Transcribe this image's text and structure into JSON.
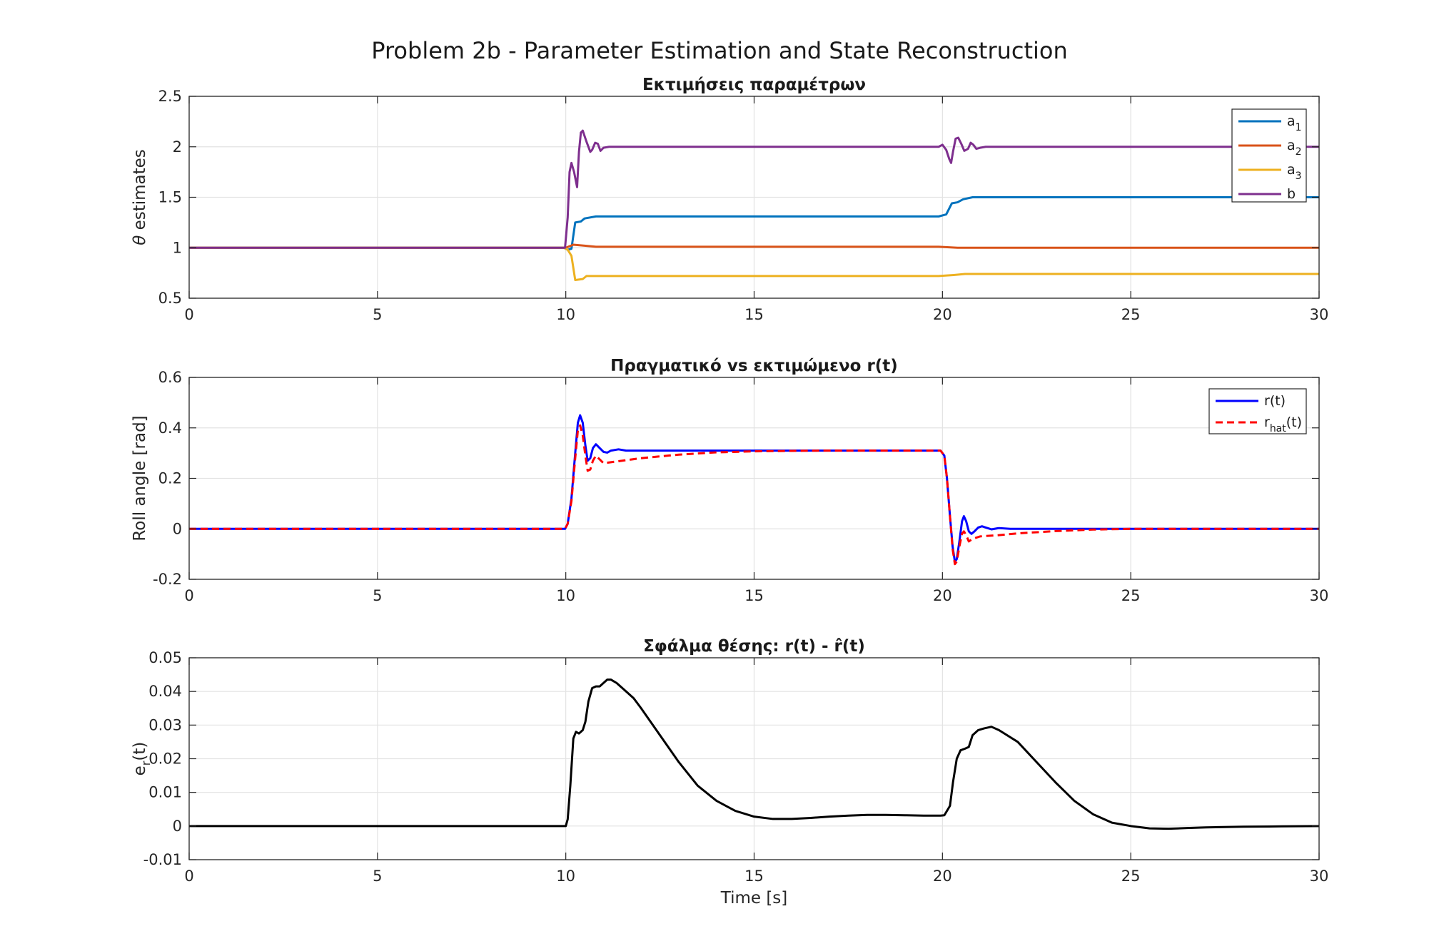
{
  "figure": {
    "suptitle": "Problem 2b - Parameter Estimation and State Reconstruction"
  },
  "chart_data": [
    {
      "type": "line",
      "title": "Εκτιμήσεις παραμέτρων",
      "xlabel": "",
      "ylabel_symbol": "θ",
      "ylabel": "estimates",
      "xlim": [
        0,
        30
      ],
      "ylim": [
        0.5,
        2.5
      ],
      "xticks": [
        "0",
        "5",
        "10",
        "15",
        "20",
        "25",
        "30"
      ],
      "yticks": [
        "0.5",
        "1",
        "1.5",
        "2",
        "2.5"
      ],
      "grid": true,
      "legend_position": "top-right",
      "series": [
        {
          "name": "a",
          "subscript": "1",
          "color": "#0072BD",
          "dash": "solid",
          "points": [
            [
              0,
              1
            ],
            [
              9.95,
              1
            ],
            [
              10.05,
              0.98
            ],
            [
              10.15,
              0.99
            ],
            [
              10.25,
              1.25
            ],
            [
              10.4,
              1.26
            ],
            [
              10.5,
              1.29
            ],
            [
              10.8,
              1.31
            ],
            [
              12,
              1.31
            ],
            [
              19.9,
              1.31
            ],
            [
              20.1,
              1.33
            ],
            [
              20.25,
              1.44
            ],
            [
              20.4,
              1.45
            ],
            [
              20.55,
              1.48
            ],
            [
              20.8,
              1.5
            ],
            [
              30,
              1.5
            ]
          ]
        },
        {
          "name": "a",
          "subscript": "2",
          "color": "#D95319",
          "dash": "solid",
          "points": [
            [
              0,
              1
            ],
            [
              10,
              1
            ],
            [
              10.2,
              1.03
            ],
            [
              10.5,
              1.02
            ],
            [
              10.8,
              1.01
            ],
            [
              19.9,
              1.01
            ],
            [
              20.4,
              1.0
            ],
            [
              30,
              1.0
            ]
          ]
        },
        {
          "name": "a",
          "subscript": "3",
          "color": "#EDB120",
          "dash": "solid",
          "points": [
            [
              0,
              1
            ],
            [
              9.95,
              1
            ],
            [
              10.05,
              0.98
            ],
            [
              10.15,
              0.92
            ],
            [
              10.25,
              0.68
            ],
            [
              10.45,
              0.69
            ],
            [
              10.55,
              0.72
            ],
            [
              10.8,
              0.72
            ],
            [
              19.9,
              0.72
            ],
            [
              20.3,
              0.73
            ],
            [
              20.6,
              0.74
            ],
            [
              30,
              0.74
            ]
          ]
        },
        {
          "name": "b",
          "subscript": "",
          "color": "#7E2F8E",
          "dash": "solid",
          "points": [
            [
              0,
              1
            ],
            [
              9.98,
              1
            ],
            [
              10.05,
              1.3
            ],
            [
              10.1,
              1.75
            ],
            [
              10.15,
              1.84
            ],
            [
              10.22,
              1.75
            ],
            [
              10.3,
              1.6
            ],
            [
              10.35,
              1.95
            ],
            [
              10.4,
              2.14
            ],
            [
              10.45,
              2.16
            ],
            [
              10.55,
              2.05
            ],
            [
              10.65,
              1.95
            ],
            [
              10.7,
              1.97
            ],
            [
              10.78,
              2.04
            ],
            [
              10.85,
              2.03
            ],
            [
              10.92,
              1.96
            ],
            [
              11.0,
              1.99
            ],
            [
              11.15,
              2.0
            ],
            [
              12,
              2.0
            ],
            [
              19.9,
              2.0
            ],
            [
              20.0,
              2.02
            ],
            [
              20.1,
              1.97
            ],
            [
              20.18,
              1.88
            ],
            [
              20.23,
              1.84
            ],
            [
              20.28,
              1.95
            ],
            [
              20.35,
              2.08
            ],
            [
              20.42,
              2.09
            ],
            [
              20.5,
              2.03
            ],
            [
              20.58,
              1.96
            ],
            [
              20.68,
              1.98
            ],
            [
              20.75,
              2.04
            ],
            [
              20.82,
              2.02
            ],
            [
              20.9,
              1.98
            ],
            [
              21.0,
              1.99
            ],
            [
              21.15,
              2.0
            ],
            [
              30,
              2.0
            ]
          ]
        }
      ]
    },
    {
      "type": "line",
      "title": "Πραγματικό vs εκτιμώμενο r(t)",
      "xlabel": "",
      "ylabel": "Roll angle [rad]",
      "xlim": [
        0,
        30
      ],
      "ylim": [
        -0.2,
        0.6
      ],
      "xticks": [
        "0",
        "5",
        "10",
        "15",
        "20",
        "25",
        "30"
      ],
      "yticks": [
        "-0.2",
        "0",
        "0.2",
        "0.4",
        "0.6"
      ],
      "grid": true,
      "legend_position": "top-right",
      "series": [
        {
          "name": "r(t)",
          "label_main": "r",
          "label_sub": "",
          "label_tail": "(t)",
          "color": "#0000FF",
          "dash": "solid",
          "points": [
            [
              0,
              0
            ],
            [
              9.98,
              0
            ],
            [
              10.05,
              0.02
            ],
            [
              10.15,
              0.12
            ],
            [
              10.25,
              0.3
            ],
            [
              10.32,
              0.42
            ],
            [
              10.38,
              0.45
            ],
            [
              10.45,
              0.42
            ],
            [
              10.52,
              0.33
            ],
            [
              10.58,
              0.27
            ],
            [
              10.65,
              0.28
            ],
            [
              10.72,
              0.32
            ],
            [
              10.8,
              0.335
            ],
            [
              10.9,
              0.32
            ],
            [
              11.0,
              0.305
            ],
            [
              11.1,
              0.302
            ],
            [
              11.2,
              0.31
            ],
            [
              11.4,
              0.315
            ],
            [
              11.6,
              0.31
            ],
            [
              12,
              0.31
            ],
            [
              19.95,
              0.31
            ],
            [
              20.05,
              0.29
            ],
            [
              20.12,
              0.2
            ],
            [
              20.2,
              0.05
            ],
            [
              20.27,
              -0.07
            ],
            [
              20.33,
              -0.13
            ],
            [
              20.38,
              -0.12
            ],
            [
              20.45,
              -0.05
            ],
            [
              20.52,
              0.03
            ],
            [
              20.57,
              0.05
            ],
            [
              20.63,
              0.03
            ],
            [
              20.7,
              -0.01
            ],
            [
              20.77,
              -0.02
            ],
            [
              20.85,
              -0.01
            ],
            [
              20.95,
              0.005
            ],
            [
              21.05,
              0.01
            ],
            [
              21.15,
              0.005
            ],
            [
              21.3,
              -0.002
            ],
            [
              21.5,
              0.003
            ],
            [
              21.8,
              0
            ],
            [
              30,
              0
            ]
          ]
        },
        {
          "name": "r_hat(t)",
          "label_main": "r",
          "label_sub": "hat",
          "label_tail": "(t)",
          "color": "#FF0000",
          "dash": "dashed",
          "points": [
            [
              0,
              0
            ],
            [
              9.98,
              0
            ],
            [
              10.05,
              0.02
            ],
            [
              10.15,
              0.11
            ],
            [
              10.25,
              0.28
            ],
            [
              10.32,
              0.39
            ],
            [
              10.38,
              0.41
            ],
            [
              10.45,
              0.37
            ],
            [
              10.52,
              0.29
            ],
            [
              10.58,
              0.23
            ],
            [
              10.65,
              0.235
            ],
            [
              10.72,
              0.27
            ],
            [
              10.8,
              0.29
            ],
            [
              10.9,
              0.275
            ],
            [
              11.0,
              0.26
            ],
            [
              11.5,
              0.27
            ],
            [
              12,
              0.28
            ],
            [
              13,
              0.294
            ],
            [
              14,
              0.303
            ],
            [
              15,
              0.307
            ],
            [
              16,
              0.309
            ],
            [
              17,
              0.31
            ],
            [
              19.95,
              0.31
            ],
            [
              20.05,
              0.29
            ],
            [
              20.12,
              0.2
            ],
            [
              20.2,
              0.05
            ],
            [
              20.27,
              -0.08
            ],
            [
              20.33,
              -0.14
            ],
            [
              20.38,
              -0.13
            ],
            [
              20.45,
              -0.07
            ],
            [
              20.52,
              -0.02
            ],
            [
              20.57,
              -0.01
            ],
            [
              20.63,
              -0.025
            ],
            [
              20.7,
              -0.05
            ],
            [
              20.8,
              -0.04
            ],
            [
              21.0,
              -0.03
            ],
            [
              21.5,
              -0.025
            ],
            [
              22,
              -0.018
            ],
            [
              23,
              -0.009
            ],
            [
              24,
              -0.003
            ],
            [
              25,
              0
            ],
            [
              30,
              0
            ]
          ]
        }
      ]
    },
    {
      "type": "line",
      "title": "Σφάλμα θέσης: r(t) - r̂(t)",
      "xlabel": "Time [s]",
      "ylabel_main": "e",
      "ylabel_sub": "r",
      "ylabel_tail": "(t)",
      "xlim": [
        0,
        30
      ],
      "ylim": [
        -0.01,
        0.05
      ],
      "xticks": [
        "0",
        "5",
        "10",
        "15",
        "20",
        "25",
        "30"
      ],
      "yticks": [
        "-0.01",
        "0",
        "0.01",
        "0.02",
        "0.03",
        "0.04",
        "0.05"
      ],
      "grid": true,
      "legend_position": "none",
      "series": [
        {
          "name": "e_r(t)",
          "color": "#000000",
          "dash": "solid",
          "points": [
            [
              0,
              0
            ],
            [
              10,
              0
            ],
            [
              10.05,
              0.002
            ],
            [
              10.12,
              0.012
            ],
            [
              10.2,
              0.026
            ],
            [
              10.27,
              0.028
            ],
            [
              10.35,
              0.0275
            ],
            [
              10.45,
              0.0285
            ],
            [
              10.52,
              0.031
            ],
            [
              10.6,
              0.037
            ],
            [
              10.7,
              0.041
            ],
            [
              10.8,
              0.0415
            ],
            [
              10.9,
              0.0415
            ],
            [
              11.0,
              0.0425
            ],
            [
              11.1,
              0.0435
            ],
            [
              11.2,
              0.0435
            ],
            [
              11.35,
              0.0425
            ],
            [
              11.6,
              0.04
            ],
            [
              11.8,
              0.038
            ],
            [
              12,
              0.035
            ],
            [
              12.5,
              0.027
            ],
            [
              13,
              0.019
            ],
            [
              13.5,
              0.012
            ],
            [
              14,
              0.0075
            ],
            [
              14.5,
              0.0045
            ],
            [
              15,
              0.0028
            ],
            [
              15.5,
              0.0021
            ],
            [
              16,
              0.0021
            ],
            [
              16.5,
              0.0024
            ],
            [
              17,
              0.0028
            ],
            [
              17.5,
              0.0031
            ],
            [
              18,
              0.0033
            ],
            [
              18.5,
              0.0033
            ],
            [
              19,
              0.0032
            ],
            [
              19.5,
              0.0031
            ],
            [
              19.95,
              0.0031
            ],
            [
              20.05,
              0.0032
            ],
            [
              20.2,
              0.006
            ],
            [
              20.28,
              0.013
            ],
            [
              20.38,
              0.02
            ],
            [
              20.48,
              0.0225
            ],
            [
              20.6,
              0.023
            ],
            [
              20.7,
              0.0235
            ],
            [
              20.8,
              0.027
            ],
            [
              20.95,
              0.0285
            ],
            [
              21.1,
              0.029
            ],
            [
              21.3,
              0.0295
            ],
            [
              21.5,
              0.0285
            ],
            [
              22,
              0.025
            ],
            [
              22.5,
              0.019
            ],
            [
              23,
              0.013
            ],
            [
              23.5,
              0.0075
            ],
            [
              24,
              0.0035
            ],
            [
              24.5,
              0.001
            ],
            [
              25,
              0.0
            ],
            [
              25.5,
              -0.0007
            ],
            [
              26,
              -0.0008
            ],
            [
              26.5,
              -0.0006
            ],
            [
              27,
              -0.0004
            ],
            [
              28,
              -0.0002
            ],
            [
              29,
              -0.0001
            ],
            [
              30,
              0
            ]
          ]
        }
      ]
    }
  ]
}
